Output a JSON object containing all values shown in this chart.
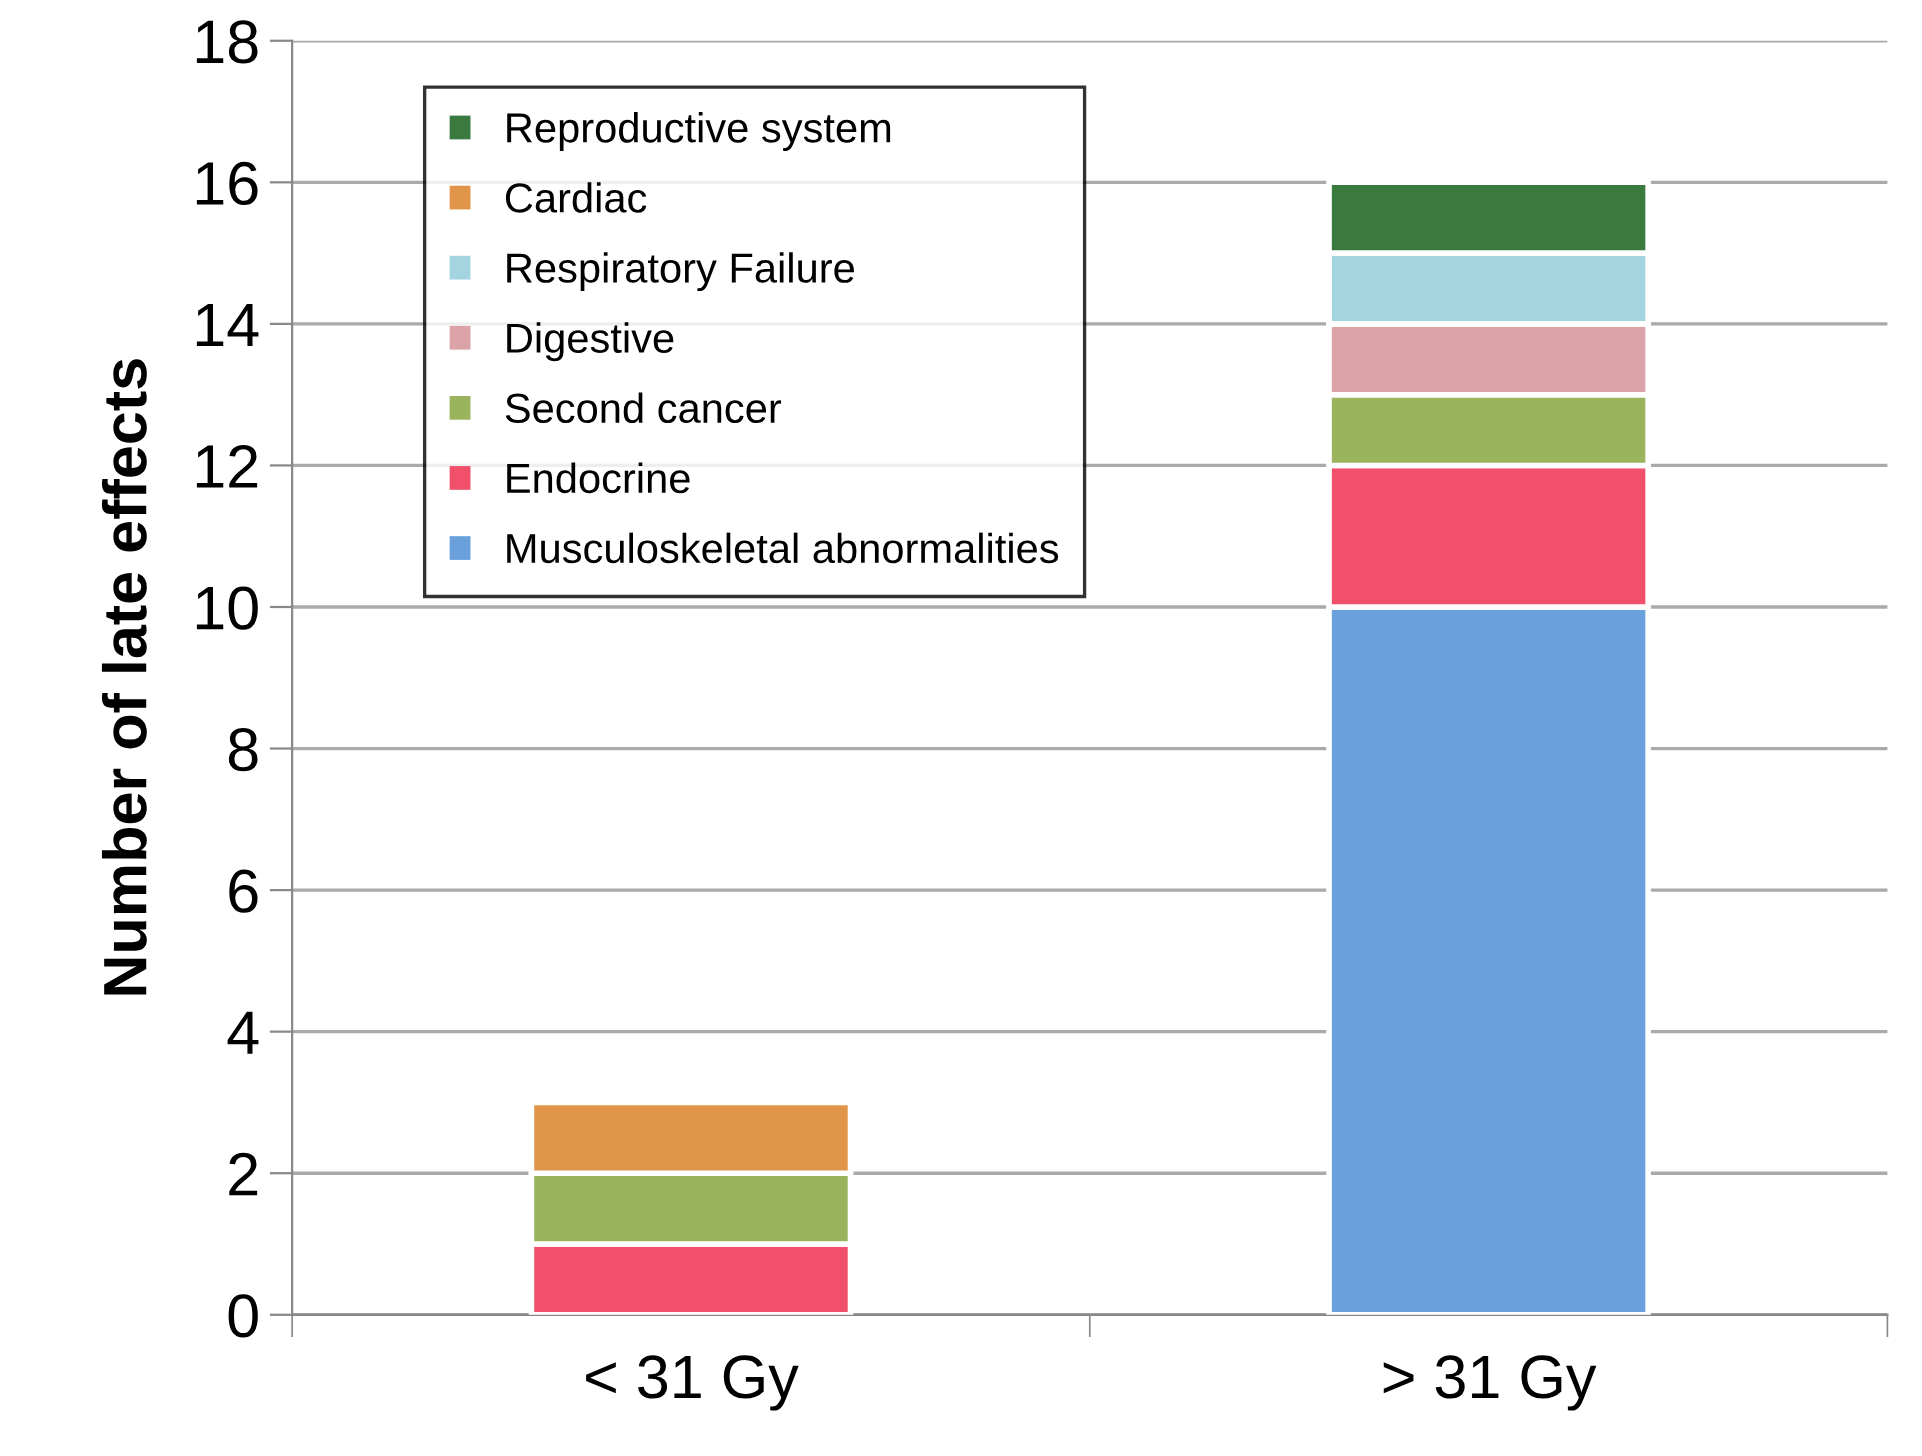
{
  "chart_data": {
    "type": "bar",
    "stacked": true,
    "ylabel": "Number of late effects",
    "categories": [
      "< 31 Gy",
      "> 31 Gy"
    ],
    "series": [
      {
        "name": "Musculoskeletal abnormalities",
        "color": "#6aa1dc",
        "values": [
          null,
          10
        ]
      },
      {
        "name": "Endocrine",
        "color": "#f0506a",
        "values": [
          1,
          2
        ]
      },
      {
        "name": "Second cancer",
        "color": "#99b45c",
        "values": [
          1,
          1
        ]
      },
      {
        "name": "Digestive",
        "color": "#dba3a8",
        "values": [
          null,
          1
        ]
      },
      {
        "name": "Respiratory Failure",
        "color": "#a4d4e0",
        "values": [
          null,
          1
        ]
      },
      {
        "name": "Cardiac",
        "color": "#e0954a",
        "values": [
          1,
          null
        ]
      },
      {
        "name": "Reproductive system",
        "color": "#3a7a3e",
        "values": [
          null,
          1
        ]
      }
    ],
    "ylim": [
      0,
      18
    ],
    "yticks": [
      0,
      2,
      4,
      6,
      8,
      10,
      12,
      14,
      16,
      18
    ],
    "grid": "y",
    "legend": "top left"
  }
}
